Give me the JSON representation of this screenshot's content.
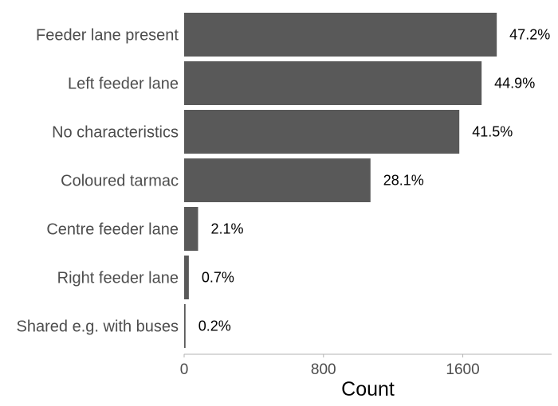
{
  "chart_data": {
    "type": "bar",
    "orientation": "horizontal",
    "categories": [
      "Feeder lane present",
      "Left feeder lane",
      "No characteristics",
      "Coloured tarmac",
      "Centre feeder lane",
      "Right feeder lane",
      "Shared e.g. with buses"
    ],
    "values": [
      1795,
      1708,
      1580,
      1070,
      80,
      27,
      8
    ],
    "data_labels": [
      "47.2%",
      "44.9%",
      "41.5%",
      "28.1%",
      "2.1%",
      "0.7%",
      "0.2%"
    ],
    "xlabel": "Count",
    "ylabel": "",
    "xlim": [
      0,
      2110
    ],
    "x_ticks": [
      0,
      800,
      1600
    ],
    "x_tick_labels": [
      "0",
      "800",
      "1600"
    ],
    "grid": false,
    "bar_color": "#595959",
    "axis_color": "#b3b3b3"
  }
}
